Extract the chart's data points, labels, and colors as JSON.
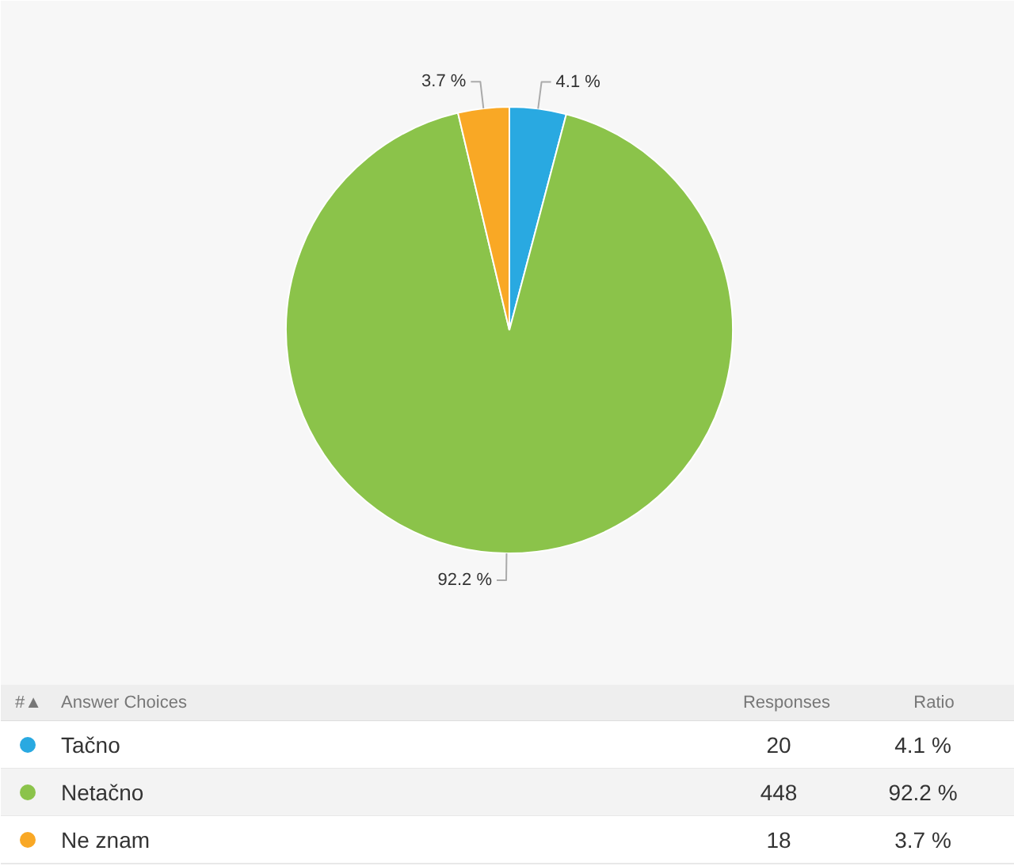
{
  "chart_data": {
    "type": "pie",
    "categories": [
      "Tačno",
      "Netačno",
      "Ne znam"
    ],
    "values": [
      4.1,
      92.2,
      3.7
    ],
    "colors": [
      "#29a9e1",
      "#8bc34a",
      "#f9a825"
    ],
    "value_labels": [
      "4.1 %",
      "92.2 %",
      "3.7 %"
    ],
    "legend": "bottom",
    "annotations": [
      "#▲",
      "Answer Choices",
      "Responses",
      "Ratio",
      "20",
      "448",
      "18"
    ]
  }
}
